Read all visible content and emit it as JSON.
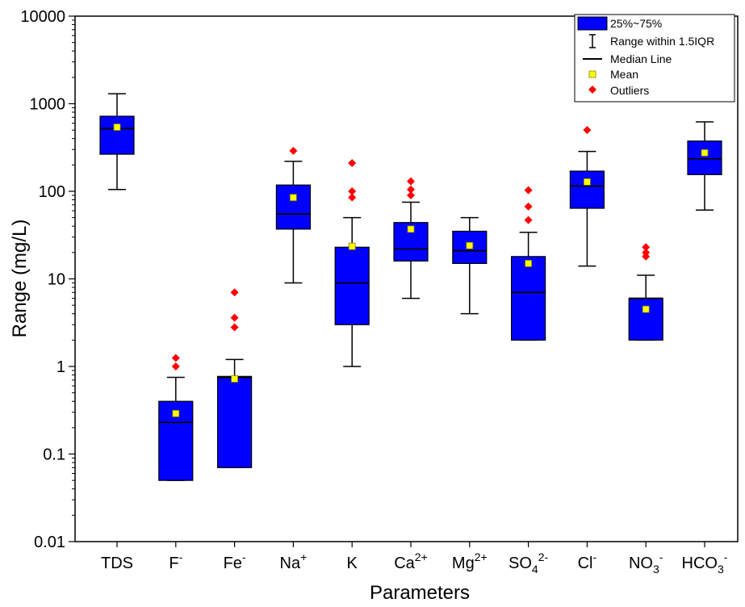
{
  "chart_data": {
    "type": "box",
    "xlabel": "Parameters",
    "ylabel": "Range (mg/L)",
    "y_scale": "log",
    "ylim": [
      0.01,
      10000
    ],
    "yticks": [
      "0.01",
      "0.1",
      "1",
      "10",
      "100",
      "1000",
      "10000"
    ],
    "grid": false,
    "legend_position": "top-right",
    "legend": {
      "box": "25%~75%",
      "whisker": "Range within 1.5IQR",
      "median": "Median Line",
      "mean": "Mean",
      "outliers": "Outliers"
    },
    "colors": {
      "box_fill": "#0000ff",
      "mean": "#ffff00",
      "outlier": "#ff0000",
      "line": "#000000"
    },
    "categories": [
      {
        "base": "TDS",
        "sup": "",
        "sub": "",
        "sup2": "",
        "q1": 265,
        "median": 520,
        "q3": 720,
        "whisker_low": 105,
        "whisker_high": 1300,
        "mean": 540,
        "outliers": []
      },
      {
        "base": "F",
        "sup": "-",
        "sub": "",
        "sup2": "",
        "q1": 0.05,
        "median": 0.23,
        "q3": 0.4,
        "whisker_low": 0.05,
        "whisker_high": 0.75,
        "mean": 0.29,
        "outliers": [
          1.0,
          1.25
        ]
      },
      {
        "base": "Fe",
        "sup": "-",
        "sub": "",
        "sup2": "",
        "q1": 0.07,
        "median": 0.75,
        "q3": 0.77,
        "whisker_low": 0.07,
        "whisker_high": 1.2,
        "mean": 0.72,
        "outliers": [
          2.8,
          3.6,
          7.0
        ]
      },
      {
        "base": "Na",
        "sup": "+",
        "sub": "",
        "sup2": "",
        "q1": 37,
        "median": 55,
        "q3": 118,
        "whisker_low": 9,
        "whisker_high": 220,
        "mean": 85,
        "outliers": [
          290
        ]
      },
      {
        "base": "K",
        "sup": "",
        "sub": "",
        "sup2": "",
        "q1": 3,
        "median": 9,
        "q3": 23,
        "whisker_low": 1,
        "whisker_high": 50,
        "mean": 23.5,
        "outliers": [
          85,
          100,
          210
        ]
      },
      {
        "base": "Ca",
        "sup": "2+",
        "sub": "",
        "sup2": "",
        "q1": 16,
        "median": 22,
        "q3": 44,
        "whisker_low": 6,
        "whisker_high": 75,
        "mean": 37,
        "outliers": [
          90,
          105,
          130
        ]
      },
      {
        "base": "Mg",
        "sup": "2+",
        "sub": "",
        "sup2": "",
        "q1": 15,
        "median": 21,
        "q3": 35,
        "whisker_low": 4,
        "whisker_high": 50,
        "mean": 24,
        "outliers": []
      },
      {
        "base": "SO",
        "sup": "",
        "sub": "4",
        "sup2": "2-",
        "q1": 2,
        "median": 7,
        "q3": 18,
        "whisker_low": 2,
        "whisker_high": 34,
        "mean": 15,
        "outliers": [
          47,
          67,
          103
        ]
      },
      {
        "base": "Cl",
        "sup": "-",
        "sub": "",
        "sup2": "",
        "q1": 64,
        "median": 115,
        "q3": 170,
        "whisker_low": 14,
        "whisker_high": 285,
        "mean": 128,
        "outliers": [
          500
        ]
      },
      {
        "base": "NO",
        "sup": "",
        "sub": "3",
        "sup2": "-",
        "q1": 2,
        "median": 6,
        "q3": 6,
        "whisker_low": 2,
        "whisker_high": 11,
        "mean": 4.5,
        "outliers": [
          18,
          20,
          23
        ]
      },
      {
        "base": "HCO",
        "sup": "",
        "sub": "3",
        "sup2": "-",
        "q1": 155,
        "median": 235,
        "q3": 375,
        "whisker_low": 61,
        "whisker_high": 620,
        "mean": 275,
        "outliers": []
      }
    ]
  }
}
